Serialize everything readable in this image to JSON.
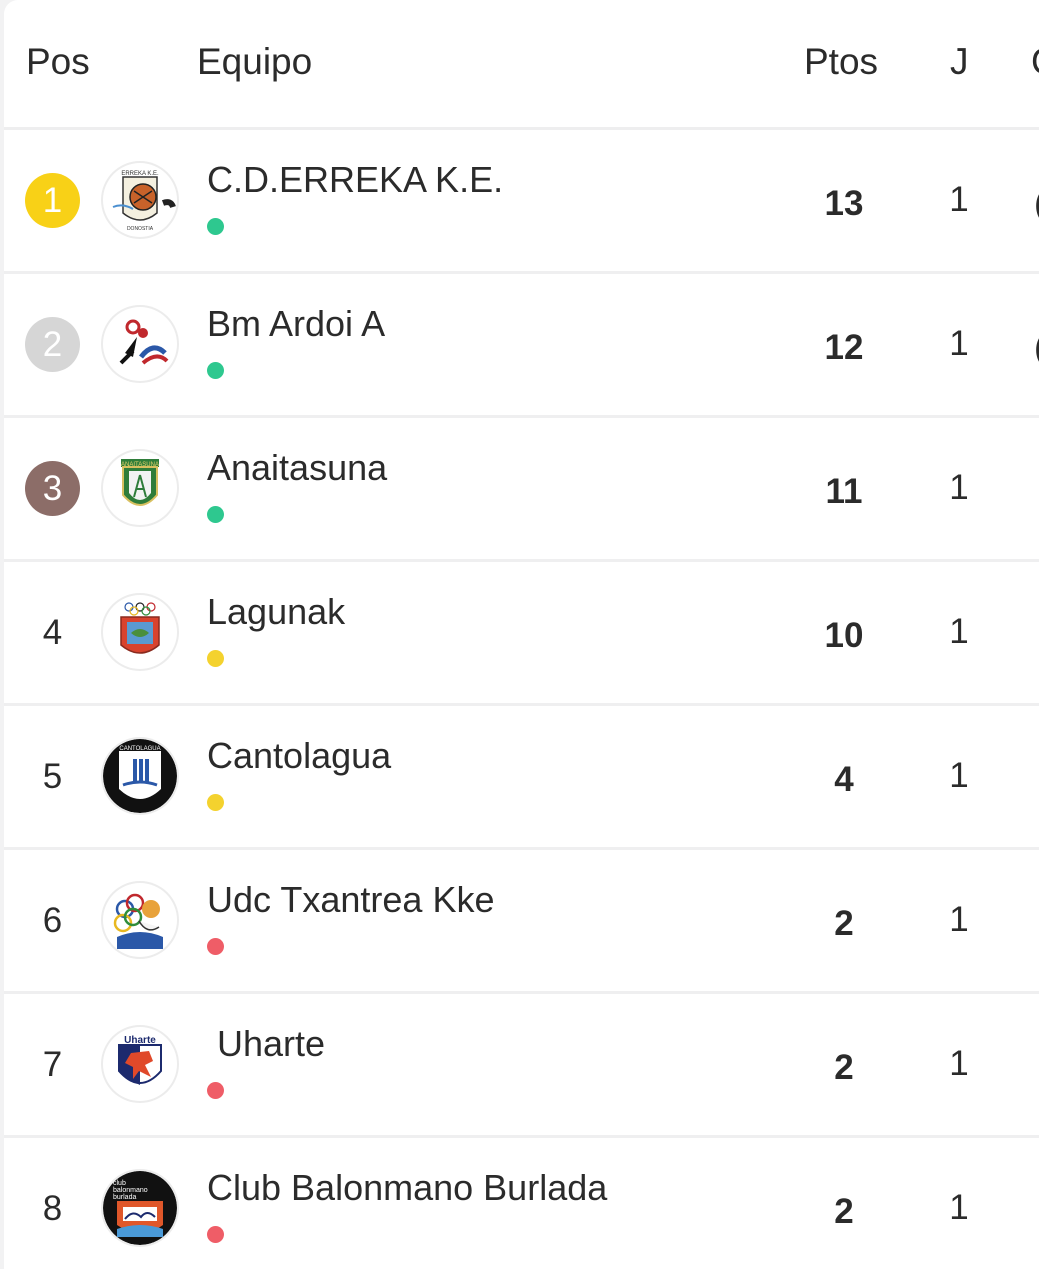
{
  "header": {
    "pos": "Pos",
    "equipo": "Equipo",
    "ptos": "Ptos",
    "j": "J",
    "cut": "G"
  },
  "colors": {
    "gold": "#f8d117",
    "silver": "#d6d6d6",
    "bronze": "#8c6d68",
    "green": "#2ec88f",
    "yellow": "#f4d22e",
    "red": "#ef5d67"
  },
  "rows": [
    {
      "pos": "1",
      "medal": "gold",
      "team": "C.D.ERREKA K.E.",
      "logo": "erreka-logo",
      "status": "green",
      "pts": "13",
      "j": "1",
      "edge": "("
    },
    {
      "pos": "2",
      "medal": "silver",
      "team": "Bm Ardoi A",
      "logo": "ardoi-logo",
      "status": "green",
      "pts": "12",
      "j": "1",
      "edge": "("
    },
    {
      "pos": "3",
      "medal": "bronze",
      "team": "Anaitasuna",
      "logo": "anaitasuna-logo",
      "status": "green",
      "pts": "11",
      "j": "1",
      "edge": ""
    },
    {
      "pos": "4",
      "medal": "",
      "team": "Lagunak",
      "logo": "lagunak-logo",
      "status": "yellow",
      "pts": "10",
      "j": "1",
      "edge": ""
    },
    {
      "pos": "5",
      "medal": "",
      "team": "Cantolagua",
      "logo": "cantolagua-logo",
      "status": "yellow",
      "pts": "4",
      "j": "1",
      "edge": ""
    },
    {
      "pos": "6",
      "medal": "",
      "team": "Udc Txantrea Kke",
      "logo": "txantrea-logo",
      "status": "red",
      "pts": "2",
      "j": "1",
      "edge": ""
    },
    {
      "pos": "7",
      "medal": "",
      "team": " Uharte",
      "logo": "uharte-logo",
      "status": "red",
      "pts": "2",
      "j": "1",
      "edge": ""
    },
    {
      "pos": "8",
      "medal": "",
      "team": "Club Balonmano Burlada",
      "logo": "burlada-logo",
      "status": "red",
      "pts": "2",
      "j": "1",
      "edge": ""
    }
  ]
}
